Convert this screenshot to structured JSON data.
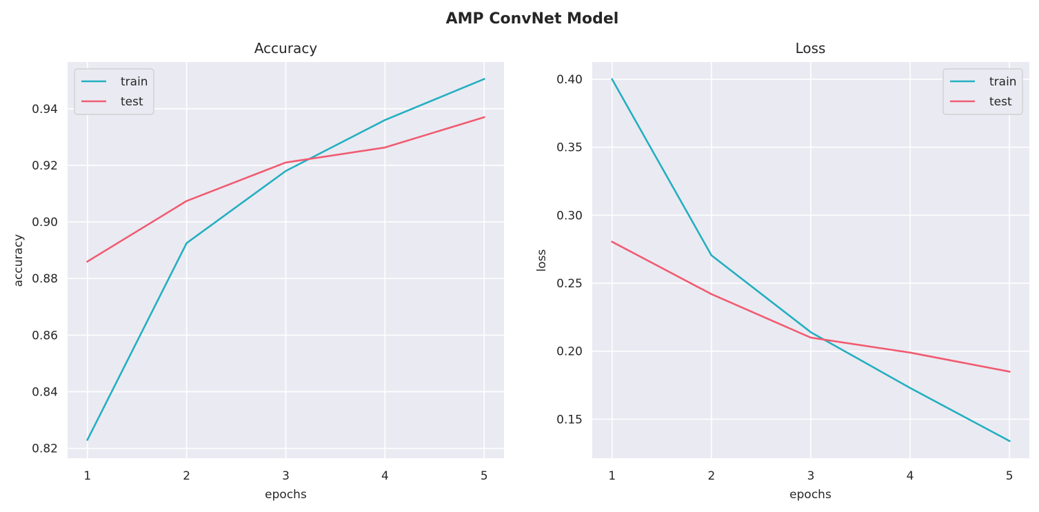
{
  "figure": {
    "suptitle": "AMP ConvNet Model"
  },
  "chart_data": [
    {
      "type": "line",
      "title": "Accuracy",
      "xlabel": "epochs",
      "ylabel": "accuracy",
      "x": [
        1,
        2,
        3,
        4,
        5
      ],
      "xticks": [
        "1",
        "2",
        "3",
        "4",
        "5"
      ],
      "xlim": [
        0.8,
        5.2
      ],
      "ylim": [
        0.8165,
        0.9565
      ],
      "yticks": [
        "0.82",
        "0.84",
        "0.86",
        "0.88",
        "0.90",
        "0.92",
        "0.94"
      ],
      "grid": true,
      "legend_position": "upper left",
      "series": [
        {
          "name": "train",
          "color": "#22afc0",
          "values": [
            0.823,
            0.8925,
            0.918,
            0.936,
            0.9505
          ]
        },
        {
          "name": "test",
          "color": "#f05b70",
          "values": [
            0.886,
            0.9074,
            0.921,
            0.9263,
            0.937
          ]
        }
      ]
    },
    {
      "type": "line",
      "title": "Loss",
      "xlabel": "epochs",
      "ylabel": "loss",
      "x": [
        1,
        2,
        3,
        4,
        5
      ],
      "xticks": [
        "1",
        "2",
        "3",
        "4",
        "5"
      ],
      "xlim": [
        0.8,
        5.2
      ],
      "ylim": [
        0.1213,
        0.4127
      ],
      "yticks": [
        "0.15",
        "0.20",
        "0.25",
        "0.30",
        "0.35",
        "0.40"
      ],
      "grid": true,
      "legend_position": "upper right",
      "series": [
        {
          "name": "train",
          "color": "#22afc0",
          "values": [
            0.4,
            0.2705,
            0.214,
            0.173,
            0.134
          ]
        },
        {
          "name": "test",
          "color": "#f05b70",
          "values": [
            0.2805,
            0.242,
            0.21,
            0.199,
            0.185
          ]
        }
      ]
    }
  ]
}
